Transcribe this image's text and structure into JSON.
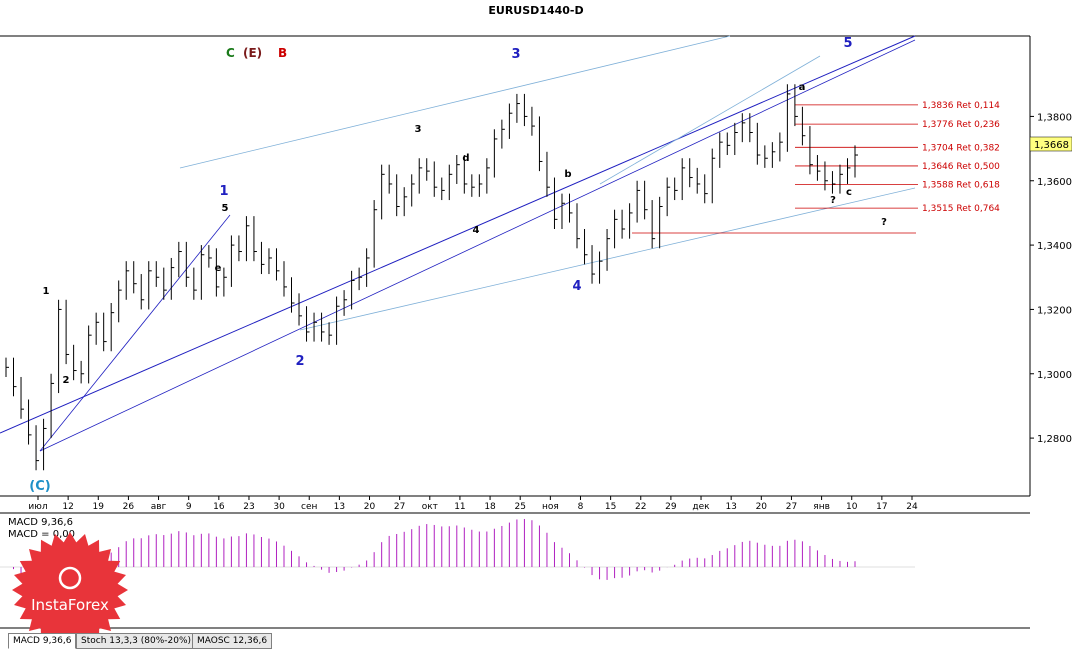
{
  "window_title": "EURUSD1440-D",
  "legend": [
    {
      "text": "C",
      "color": "#1a7a1a"
    },
    {
      "text": "(E)",
      "color": "#7a1a1a"
    },
    {
      "text": "B",
      "color": "#cc0000"
    }
  ],
  "price_current": "1,3668",
  "price_axis": [
    "1,3800",
    "1,3600",
    "1,3400",
    "1,3200",
    "1,3000",
    "1,2800"
  ],
  "date_axis": [
    "июл",
    "12",
    "19",
    "26",
    "авг",
    "9",
    "16",
    "23",
    "30",
    "сен",
    "13",
    "20",
    "27",
    "окт",
    "11",
    "18",
    "25",
    "ноя",
    "8",
    "15",
    "22",
    "29",
    "дек",
    "13",
    "20",
    "27",
    "янв",
    "10",
    "17",
    "24"
  ],
  "fib_levels": [
    {
      "label": "1,3836 Ret 0,114",
      "price": 1.3836
    },
    {
      "label": "1,3776 Ret 0,236",
      "price": 1.3776
    },
    {
      "label": "1,3704 Ret 0,382",
      "price": 1.3704
    },
    {
      "label": "1,3646 Ret 0,500",
      "price": 1.3646
    },
    {
      "label": "1,3588 Ret 0,618",
      "price": 1.3588
    },
    {
      "label": "1,3515 Ret 0,764",
      "price": 1.3515
    }
  ],
  "wave_labels": {
    "blue_big": [
      "1",
      "2",
      "3",
      "4",
      "5"
    ],
    "black": [
      "1",
      "2",
      "3",
      "4",
      "5",
      "a",
      "b",
      "c",
      "d",
      "e",
      "?"
    ],
    "primary": "(C)"
  },
  "macd": {
    "label1": "MACD 9,36,6",
    "label2": "MACD = 0,00"
  },
  "tabs": [
    "MACD 9,36,6",
    "Stoch 13,3,3 (80%-20%)",
    "MAOSC 12,36,6"
  ],
  "logo_text": "InstaForex",
  "chart_data": {
    "type": "bar",
    "title": "EURUSD1440-D",
    "ylim": [
      1.262,
      1.405
    ],
    "price_bars": [
      1.302,
      1.296,
      1.289,
      1.281,
      1.273,
      1.283,
      1.297,
      1.32,
      1.306,
      1.301,
      1.3,
      1.312,
      1.316,
      1.31,
      1.319,
      1.326,
      1.332,
      1.328,
      1.323,
      1.332,
      1.33,
      1.326,
      1.333,
      1.338,
      1.33,
      1.326,
      1.337,
      1.336,
      1.327,
      1.33,
      1.34,
      1.338,
      1.346,
      1.338,
      1.334,
      1.336,
      1.332,
      1.327,
      1.322,
      1.318,
      1.313,
      1.316,
      1.313,
      1.312,
      1.321,
      1.323,
      1.329,
      1.33,
      1.336,
      1.351,
      1.362,
      1.359,
      1.352,
      1.355,
      1.359,
      1.364,
      1.363,
      1.358,
      1.357,
      1.362,
      1.365,
      1.359,
      1.358,
      1.359,
      1.364,
      1.373,
      1.376,
      1.381,
      1.384,
      1.38,
      1.377,
      1.366,
      1.358,
      1.348,
      1.353,
      1.35,
      1.342,
      1.337,
      1.331,
      1.335,
      1.342,
      1.348,
      1.345,
      1.35,
      1.357,
      1.351,
      1.342,
      1.352,
      1.358,
      1.357,
      1.364,
      1.361,
      1.359,
      1.356,
      1.367,
      1.372,
      1.371,
      1.375,
      1.378,
      1.375,
      1.368,
      1.367,
      1.369,
      1.372,
      1.387,
      1.38,
      1.374,
      1.365,
      1.363,
      1.36,
      1.359,
      1.362,
      1.364,
      1.368
    ]
  }
}
